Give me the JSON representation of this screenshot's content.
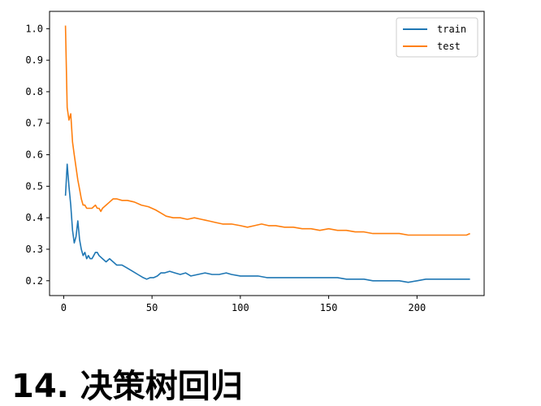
{
  "heading": {
    "number": "14.",
    "text": "决策树回归"
  },
  "chart_data": {
    "type": "line",
    "xlim": [
      -8,
      238
    ],
    "ylim": [
      0.153,
      1.055
    ],
    "xticks": [
      0,
      50,
      100,
      150,
      200
    ],
    "yticks": [
      0.2,
      0.3,
      0.4,
      0.5,
      0.6,
      0.7,
      0.8,
      0.9,
      1.0
    ],
    "xtick_labels": [
      "0",
      "50",
      "100",
      "150",
      "200"
    ],
    "ytick_labels": [
      "0.2",
      "0.3",
      "0.4",
      "0.5",
      "0.6",
      "0.7",
      "0.8",
      "0.9",
      "1.0"
    ],
    "grid": false,
    "legend": "top-right",
    "series": [
      {
        "name": "train",
        "color": "#1f77b4",
        "points": [
          [
            1,
            0.47
          ],
          [
            2,
            0.57
          ],
          [
            3,
            0.5
          ],
          [
            4,
            0.44
          ],
          [
            5,
            0.36
          ],
          [
            6,
            0.32
          ],
          [
            7,
            0.34
          ],
          [
            8,
            0.39
          ],
          [
            9,
            0.33
          ],
          [
            10,
            0.3
          ],
          [
            11,
            0.28
          ],
          [
            12,
            0.29
          ],
          [
            13,
            0.27
          ],
          [
            14,
            0.28
          ],
          [
            15,
            0.27
          ],
          [
            16,
            0.27
          ],
          [
            17,
            0.28
          ],
          [
            18,
            0.29
          ],
          [
            19,
            0.29
          ],
          [
            20,
            0.28
          ],
          [
            22,
            0.27
          ],
          [
            24,
            0.26
          ],
          [
            26,
            0.27
          ],
          [
            28,
            0.26
          ],
          [
            30,
            0.25
          ],
          [
            33,
            0.25
          ],
          [
            36,
            0.24
          ],
          [
            39,
            0.23
          ],
          [
            42,
            0.22
          ],
          [
            45,
            0.21
          ],
          [
            47,
            0.205
          ],
          [
            49,
            0.21
          ],
          [
            51,
            0.21
          ],
          [
            53,
            0.215
          ],
          [
            55,
            0.225
          ],
          [
            57,
            0.225
          ],
          [
            60,
            0.23
          ],
          [
            63,
            0.225
          ],
          [
            66,
            0.22
          ],
          [
            69,
            0.225
          ],
          [
            72,
            0.215
          ],
          [
            76,
            0.22
          ],
          [
            80,
            0.225
          ],
          [
            84,
            0.22
          ],
          [
            88,
            0.22
          ],
          [
            92,
            0.225
          ],
          [
            95,
            0.22
          ],
          [
            100,
            0.215
          ],
          [
            105,
            0.215
          ],
          [
            110,
            0.215
          ],
          [
            115,
            0.21
          ],
          [
            120,
            0.21
          ],
          [
            125,
            0.21
          ],
          [
            130,
            0.21
          ],
          [
            135,
            0.21
          ],
          [
            140,
            0.21
          ],
          [
            145,
            0.21
          ],
          [
            150,
            0.21
          ],
          [
            155,
            0.21
          ],
          [
            160,
            0.205
          ],
          [
            165,
            0.205
          ],
          [
            170,
            0.205
          ],
          [
            175,
            0.2
          ],
          [
            180,
            0.2
          ],
          [
            185,
            0.2
          ],
          [
            190,
            0.2
          ],
          [
            195,
            0.195
          ],
          [
            200,
            0.2
          ],
          [
            205,
            0.205
          ],
          [
            210,
            0.205
          ],
          [
            215,
            0.205
          ],
          [
            220,
            0.205
          ],
          [
            225,
            0.205
          ],
          [
            230,
            0.205
          ]
        ]
      },
      {
        "name": "test",
        "color": "#ff7f0e",
        "points": [
          [
            1,
            1.01
          ],
          [
            2,
            0.75
          ],
          [
            3,
            0.71
          ],
          [
            4,
            0.73
          ],
          [
            5,
            0.64
          ],
          [
            6,
            0.6
          ],
          [
            7,
            0.56
          ],
          [
            8,
            0.52
          ],
          [
            9,
            0.49
          ],
          [
            10,
            0.46
          ],
          [
            11,
            0.44
          ],
          [
            12,
            0.44
          ],
          [
            13,
            0.43
          ],
          [
            14,
            0.43
          ],
          [
            16,
            0.43
          ],
          [
            18,
            0.44
          ],
          [
            19,
            0.43
          ],
          [
            20,
            0.43
          ],
          [
            21,
            0.42
          ],
          [
            22,
            0.43
          ],
          [
            24,
            0.44
          ],
          [
            26,
            0.45
          ],
          [
            28,
            0.46
          ],
          [
            30,
            0.46
          ],
          [
            33,
            0.455
          ],
          [
            36,
            0.455
          ],
          [
            40,
            0.45
          ],
          [
            44,
            0.44
          ],
          [
            48,
            0.435
          ],
          [
            52,
            0.425
          ],
          [
            55,
            0.415
          ],
          [
            58,
            0.405
          ],
          [
            62,
            0.4
          ],
          [
            66,
            0.4
          ],
          [
            70,
            0.395
          ],
          [
            74,
            0.4
          ],
          [
            78,
            0.395
          ],
          [
            82,
            0.39
          ],
          [
            86,
            0.385
          ],
          [
            90,
            0.38
          ],
          [
            95,
            0.38
          ],
          [
            100,
            0.375
          ],
          [
            104,
            0.37
          ],
          [
            108,
            0.375
          ],
          [
            112,
            0.38
          ],
          [
            116,
            0.375
          ],
          [
            120,
            0.375
          ],
          [
            125,
            0.37
          ],
          [
            130,
            0.37
          ],
          [
            135,
            0.365
          ],
          [
            140,
            0.365
          ],
          [
            145,
            0.36
          ],
          [
            150,
            0.365
          ],
          [
            155,
            0.36
          ],
          [
            160,
            0.36
          ],
          [
            165,
            0.355
          ],
          [
            170,
            0.355
          ],
          [
            175,
            0.35
          ],
          [
            180,
            0.35
          ],
          [
            185,
            0.35
          ],
          [
            190,
            0.35
          ],
          [
            195,
            0.345
          ],
          [
            200,
            0.345
          ],
          [
            205,
            0.345
          ],
          [
            210,
            0.345
          ],
          [
            215,
            0.345
          ],
          [
            220,
            0.345
          ],
          [
            225,
            0.345
          ],
          [
            228,
            0.345
          ],
          [
            230,
            0.35
          ]
        ]
      }
    ]
  }
}
